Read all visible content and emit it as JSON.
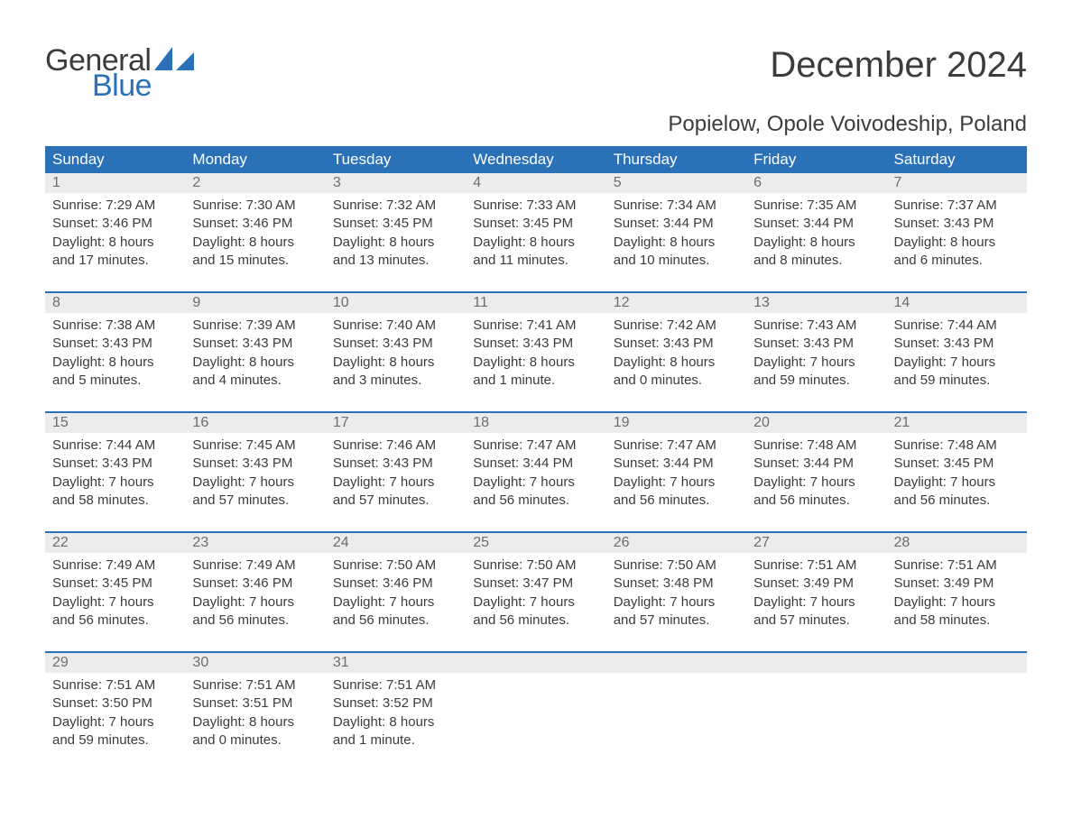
{
  "brand": {
    "word1": "General",
    "word2": "Blue",
    "logo_color": "#2a71b8"
  },
  "title": "December 2024",
  "location": "Popielow, Opole Voivodeship, Poland",
  "styling": {
    "header_bg": "#2a71b8",
    "header_text": "#ffffff",
    "daynum_bg": "#ececec",
    "daynum_color": "#6d6d6d",
    "body_text": "#3c3c3c",
    "page_bg": "#ffffff",
    "title_fontsize": 40,
    "location_fontsize": 24,
    "dayhead_fontsize": 17,
    "cell_fontsize": 15
  },
  "day_headers": [
    "Sunday",
    "Monday",
    "Tuesday",
    "Wednesday",
    "Thursday",
    "Friday",
    "Saturday"
  ],
  "weeks": [
    [
      {
        "n": "1",
        "sr": "Sunrise: 7:29 AM",
        "ss": "Sunset: 3:46 PM",
        "d1": "Daylight: 8 hours",
        "d2": "and 17 minutes."
      },
      {
        "n": "2",
        "sr": "Sunrise: 7:30 AM",
        "ss": "Sunset: 3:46 PM",
        "d1": "Daylight: 8 hours",
        "d2": "and 15 minutes."
      },
      {
        "n": "3",
        "sr": "Sunrise: 7:32 AM",
        "ss": "Sunset: 3:45 PM",
        "d1": "Daylight: 8 hours",
        "d2": "and 13 minutes."
      },
      {
        "n": "4",
        "sr": "Sunrise: 7:33 AM",
        "ss": "Sunset: 3:45 PM",
        "d1": "Daylight: 8 hours",
        "d2": "and 11 minutes."
      },
      {
        "n": "5",
        "sr": "Sunrise: 7:34 AM",
        "ss": "Sunset: 3:44 PM",
        "d1": "Daylight: 8 hours",
        "d2": "and 10 minutes."
      },
      {
        "n": "6",
        "sr": "Sunrise: 7:35 AM",
        "ss": "Sunset: 3:44 PM",
        "d1": "Daylight: 8 hours",
        "d2": "and 8 minutes."
      },
      {
        "n": "7",
        "sr": "Sunrise: 7:37 AM",
        "ss": "Sunset: 3:43 PM",
        "d1": "Daylight: 8 hours",
        "d2": "and 6 minutes."
      }
    ],
    [
      {
        "n": "8",
        "sr": "Sunrise: 7:38 AM",
        "ss": "Sunset: 3:43 PM",
        "d1": "Daylight: 8 hours",
        "d2": "and 5 minutes."
      },
      {
        "n": "9",
        "sr": "Sunrise: 7:39 AM",
        "ss": "Sunset: 3:43 PM",
        "d1": "Daylight: 8 hours",
        "d2": "and 4 minutes."
      },
      {
        "n": "10",
        "sr": "Sunrise: 7:40 AM",
        "ss": "Sunset: 3:43 PM",
        "d1": "Daylight: 8 hours",
        "d2": "and 3 minutes."
      },
      {
        "n": "11",
        "sr": "Sunrise: 7:41 AM",
        "ss": "Sunset: 3:43 PM",
        "d1": "Daylight: 8 hours",
        "d2": "and 1 minute."
      },
      {
        "n": "12",
        "sr": "Sunrise: 7:42 AM",
        "ss": "Sunset: 3:43 PM",
        "d1": "Daylight: 8 hours",
        "d2": "and 0 minutes."
      },
      {
        "n": "13",
        "sr": "Sunrise: 7:43 AM",
        "ss": "Sunset: 3:43 PM",
        "d1": "Daylight: 7 hours",
        "d2": "and 59 minutes."
      },
      {
        "n": "14",
        "sr": "Sunrise: 7:44 AM",
        "ss": "Sunset: 3:43 PM",
        "d1": "Daylight: 7 hours",
        "d2": "and 59 minutes."
      }
    ],
    [
      {
        "n": "15",
        "sr": "Sunrise: 7:44 AM",
        "ss": "Sunset: 3:43 PM",
        "d1": "Daylight: 7 hours",
        "d2": "and 58 minutes."
      },
      {
        "n": "16",
        "sr": "Sunrise: 7:45 AM",
        "ss": "Sunset: 3:43 PM",
        "d1": "Daylight: 7 hours",
        "d2": "and 57 minutes."
      },
      {
        "n": "17",
        "sr": "Sunrise: 7:46 AM",
        "ss": "Sunset: 3:43 PM",
        "d1": "Daylight: 7 hours",
        "d2": "and 57 minutes."
      },
      {
        "n": "18",
        "sr": "Sunrise: 7:47 AM",
        "ss": "Sunset: 3:44 PM",
        "d1": "Daylight: 7 hours",
        "d2": "and 56 minutes."
      },
      {
        "n": "19",
        "sr": "Sunrise: 7:47 AM",
        "ss": "Sunset: 3:44 PM",
        "d1": "Daylight: 7 hours",
        "d2": "and 56 minutes."
      },
      {
        "n": "20",
        "sr": "Sunrise: 7:48 AM",
        "ss": "Sunset: 3:44 PM",
        "d1": "Daylight: 7 hours",
        "d2": "and 56 minutes."
      },
      {
        "n": "21",
        "sr": "Sunrise: 7:48 AM",
        "ss": "Sunset: 3:45 PM",
        "d1": "Daylight: 7 hours",
        "d2": "and 56 minutes."
      }
    ],
    [
      {
        "n": "22",
        "sr": "Sunrise: 7:49 AM",
        "ss": "Sunset: 3:45 PM",
        "d1": "Daylight: 7 hours",
        "d2": "and 56 minutes."
      },
      {
        "n": "23",
        "sr": "Sunrise: 7:49 AM",
        "ss": "Sunset: 3:46 PM",
        "d1": "Daylight: 7 hours",
        "d2": "and 56 minutes."
      },
      {
        "n": "24",
        "sr": "Sunrise: 7:50 AM",
        "ss": "Sunset: 3:46 PM",
        "d1": "Daylight: 7 hours",
        "d2": "and 56 minutes."
      },
      {
        "n": "25",
        "sr": "Sunrise: 7:50 AM",
        "ss": "Sunset: 3:47 PM",
        "d1": "Daylight: 7 hours",
        "d2": "and 56 minutes."
      },
      {
        "n": "26",
        "sr": "Sunrise: 7:50 AM",
        "ss": "Sunset: 3:48 PM",
        "d1": "Daylight: 7 hours",
        "d2": "and 57 minutes."
      },
      {
        "n": "27",
        "sr": "Sunrise: 7:51 AM",
        "ss": "Sunset: 3:49 PM",
        "d1": "Daylight: 7 hours",
        "d2": "and 57 minutes."
      },
      {
        "n": "28",
        "sr": "Sunrise: 7:51 AM",
        "ss": "Sunset: 3:49 PM",
        "d1": "Daylight: 7 hours",
        "d2": "and 58 minutes."
      }
    ],
    [
      {
        "n": "29",
        "sr": "Sunrise: 7:51 AM",
        "ss": "Sunset: 3:50 PM",
        "d1": "Daylight: 7 hours",
        "d2": "and 59 minutes."
      },
      {
        "n": "30",
        "sr": "Sunrise: 7:51 AM",
        "ss": "Sunset: 3:51 PM",
        "d1": "Daylight: 8 hours",
        "d2": "and 0 minutes."
      },
      {
        "n": "31",
        "sr": "Sunrise: 7:51 AM",
        "ss": "Sunset: 3:52 PM",
        "d1": "Daylight: 8 hours",
        "d2": "and 1 minute."
      },
      null,
      null,
      null,
      null
    ]
  ]
}
